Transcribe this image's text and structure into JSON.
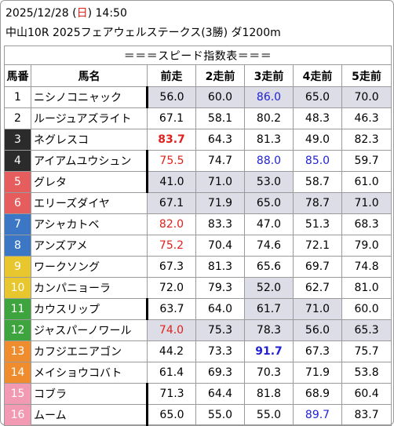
{
  "header": {
    "date_prefix": "2025/12/28 (",
    "weekday": "日",
    "date_suffix": ") 14:50",
    "race": "中山10R 2025フェアウェルステークス(3勝) ダ1200m"
  },
  "table": {
    "banner": "＝＝＝スピード指数表＝＝＝",
    "columns": [
      "馬番",
      "馬名",
      "前走",
      "2走前",
      "3走前",
      "4走前",
      "5走前"
    ],
    "rows": [
      {
        "num": "1",
        "name": "ニシノコニャック",
        "bg": "#ffffff",
        "fg": "#000000",
        "vals": [
          "56.0",
          "60.0",
          "86.0",
          "65.0",
          "70.0"
        ],
        "hl": [
          true,
          true,
          true,
          true,
          true
        ],
        "color": [
          "",
          "",
          "blue",
          "",
          ""
        ],
        "bold": [
          false,
          false,
          false,
          false,
          false
        ],
        "bar": true
      },
      {
        "num": "2",
        "name": "ルージュアズライト",
        "bg": "#ffffff",
        "fg": "#000000",
        "vals": [
          "67.1",
          "58.1",
          "80.2",
          "48.3",
          "46.3"
        ],
        "hl": [
          false,
          false,
          false,
          false,
          false
        ],
        "color": [
          "",
          "",
          "",
          "",
          ""
        ],
        "bold": [
          false,
          false,
          false,
          false,
          false
        ],
        "bar": false
      },
      {
        "num": "3",
        "name": "ネグレスコ",
        "bg": "#2b2b2b",
        "fg": "#ffffff",
        "vals": [
          "83.7",
          "64.3",
          "81.3",
          "49.0",
          "82.3"
        ],
        "hl": [
          false,
          false,
          false,
          false,
          false
        ],
        "color": [
          "red",
          "",
          "",
          "",
          ""
        ],
        "bold": [
          true,
          false,
          false,
          false,
          false
        ],
        "bar": false
      },
      {
        "num": "4",
        "name": "アイアムユウシュン",
        "bg": "#2b2b2b",
        "fg": "#ffffff",
        "vals": [
          "75.5",
          "74.7",
          "88.0",
          "85.0",
          "59.7"
        ],
        "hl": [
          false,
          false,
          false,
          false,
          false
        ],
        "color": [
          "red",
          "",
          "blue",
          "blue",
          ""
        ],
        "bold": [
          false,
          false,
          false,
          false,
          false
        ],
        "bar": true
      },
      {
        "num": "5",
        "name": "グレタ",
        "bg": "#e65d5d",
        "fg": "#ffffff",
        "vals": [
          "41.0",
          "71.0",
          "53.0",
          "58.7",
          "61.0"
        ],
        "hl": [
          true,
          true,
          true,
          false,
          false
        ],
        "color": [
          "",
          "",
          "",
          "",
          ""
        ],
        "bold": [
          false,
          false,
          false,
          false,
          false
        ],
        "bar": true
      },
      {
        "num": "6",
        "name": "エリーズダイヤ",
        "bg": "#e65d5d",
        "fg": "#ffffff",
        "vals": [
          "67.1",
          "71.9",
          "65.0",
          "78.7",
          "71.0"
        ],
        "hl": [
          true,
          true,
          true,
          true,
          true
        ],
        "color": [
          "",
          "",
          "",
          "",
          ""
        ],
        "bold": [
          false,
          false,
          false,
          false,
          false
        ],
        "bar": false
      },
      {
        "num": "7",
        "name": "アシャカトベ",
        "bg": "#3b77c5",
        "fg": "#ffffff",
        "vals": [
          "82.0",
          "83.3",
          "47.0",
          "51.3",
          "68.3"
        ],
        "hl": [
          false,
          false,
          false,
          false,
          false
        ],
        "color": [
          "red",
          "",
          "",
          "",
          ""
        ],
        "bold": [
          false,
          false,
          false,
          false,
          false
        ],
        "bar": false
      },
      {
        "num": "8",
        "name": "アンズアメ",
        "bg": "#3b77c5",
        "fg": "#ffffff",
        "vals": [
          "75.2",
          "70.4",
          "74.6",
          "72.1",
          "79.0"
        ],
        "hl": [
          false,
          false,
          false,
          false,
          false
        ],
        "color": [
          "red",
          "",
          "",
          "",
          ""
        ],
        "bold": [
          false,
          false,
          false,
          false,
          false
        ],
        "bar": false
      },
      {
        "num": "9",
        "name": "ワークソング",
        "bg": "#e8c62e",
        "fg": "#ffffff",
        "vals": [
          "67.3",
          "81.3",
          "65.6",
          "69.7",
          "74.8"
        ],
        "hl": [
          false,
          false,
          false,
          false,
          false
        ],
        "color": [
          "",
          "",
          "",
          "",
          ""
        ],
        "bold": [
          false,
          false,
          false,
          false,
          false
        ],
        "bar": false
      },
      {
        "num": "10",
        "name": "カンパニョーラ",
        "bg": "#e8c62e",
        "fg": "#ffffff",
        "vals": [
          "72.0",
          "79.3",
          "52.0",
          "62.7",
          "81.0"
        ],
        "hl": [
          false,
          false,
          true,
          false,
          false
        ],
        "color": [
          "",
          "",
          "",
          "",
          ""
        ],
        "bold": [
          false,
          false,
          false,
          false,
          false
        ],
        "bar": false
      },
      {
        "num": "11",
        "name": "カウスリップ",
        "bg": "#3ea43e",
        "fg": "#ffffff",
        "vals": [
          "63.7",
          "64.0",
          "61.7",
          "71.0",
          "60.0"
        ],
        "hl": [
          false,
          false,
          true,
          true,
          false
        ],
        "color": [
          "",
          "",
          "",
          "",
          ""
        ],
        "bold": [
          false,
          false,
          false,
          false,
          false
        ],
        "bar": true
      },
      {
        "num": "12",
        "name": "ジャスパーノワール",
        "bg": "#3ea43e",
        "fg": "#ffffff",
        "vals": [
          "74.0",
          "75.3",
          "78.3",
          "56.0",
          "65.3"
        ],
        "hl": [
          true,
          true,
          true,
          true,
          true
        ],
        "color": [
          "red",
          "",
          "",
          "",
          ""
        ],
        "bold": [
          false,
          false,
          false,
          false,
          false
        ],
        "bar": false
      },
      {
        "num": "13",
        "name": "カフジエニアゴン",
        "bg": "#ee8c2e",
        "fg": "#ffffff",
        "vals": [
          "44.2",
          "73.3",
          "91.7",
          "67.3",
          "75.7"
        ],
        "hl": [
          false,
          false,
          false,
          false,
          false
        ],
        "color": [
          "",
          "",
          "blue",
          "",
          ""
        ],
        "bold": [
          false,
          false,
          true,
          false,
          false
        ],
        "bar": false
      },
      {
        "num": "14",
        "name": "メイショウコバト",
        "bg": "#ee8c2e",
        "fg": "#ffffff",
        "vals": [
          "61.4",
          "69.3",
          "70.3",
          "71.9",
          "53.8"
        ],
        "hl": [
          false,
          false,
          false,
          false,
          false
        ],
        "color": [
          "",
          "",
          "",
          "",
          ""
        ],
        "bold": [
          false,
          false,
          false,
          false,
          false
        ],
        "bar": false
      },
      {
        "num": "15",
        "name": "コブラ",
        "bg": "#f29ab4",
        "fg": "#ffffff",
        "vals": [
          "71.3",
          "64.4",
          "81.8",
          "68.9",
          "60.4"
        ],
        "hl": [
          false,
          false,
          false,
          false,
          false
        ],
        "color": [
          "",
          "",
          "",
          "",
          ""
        ],
        "bold": [
          false,
          false,
          false,
          false,
          false
        ],
        "bar": true
      },
      {
        "num": "16",
        "name": "ムーム",
        "bg": "#f29ab4",
        "fg": "#ffffff",
        "vals": [
          "65.0",
          "55.0",
          "55.0",
          "89.7",
          "83.7"
        ],
        "hl": [
          false,
          false,
          false,
          false,
          false
        ],
        "color": [
          "",
          "",
          "",
          "blue",
          ""
        ],
        "bold": [
          false,
          false,
          false,
          false,
          false
        ],
        "bar": true
      }
    ]
  }
}
